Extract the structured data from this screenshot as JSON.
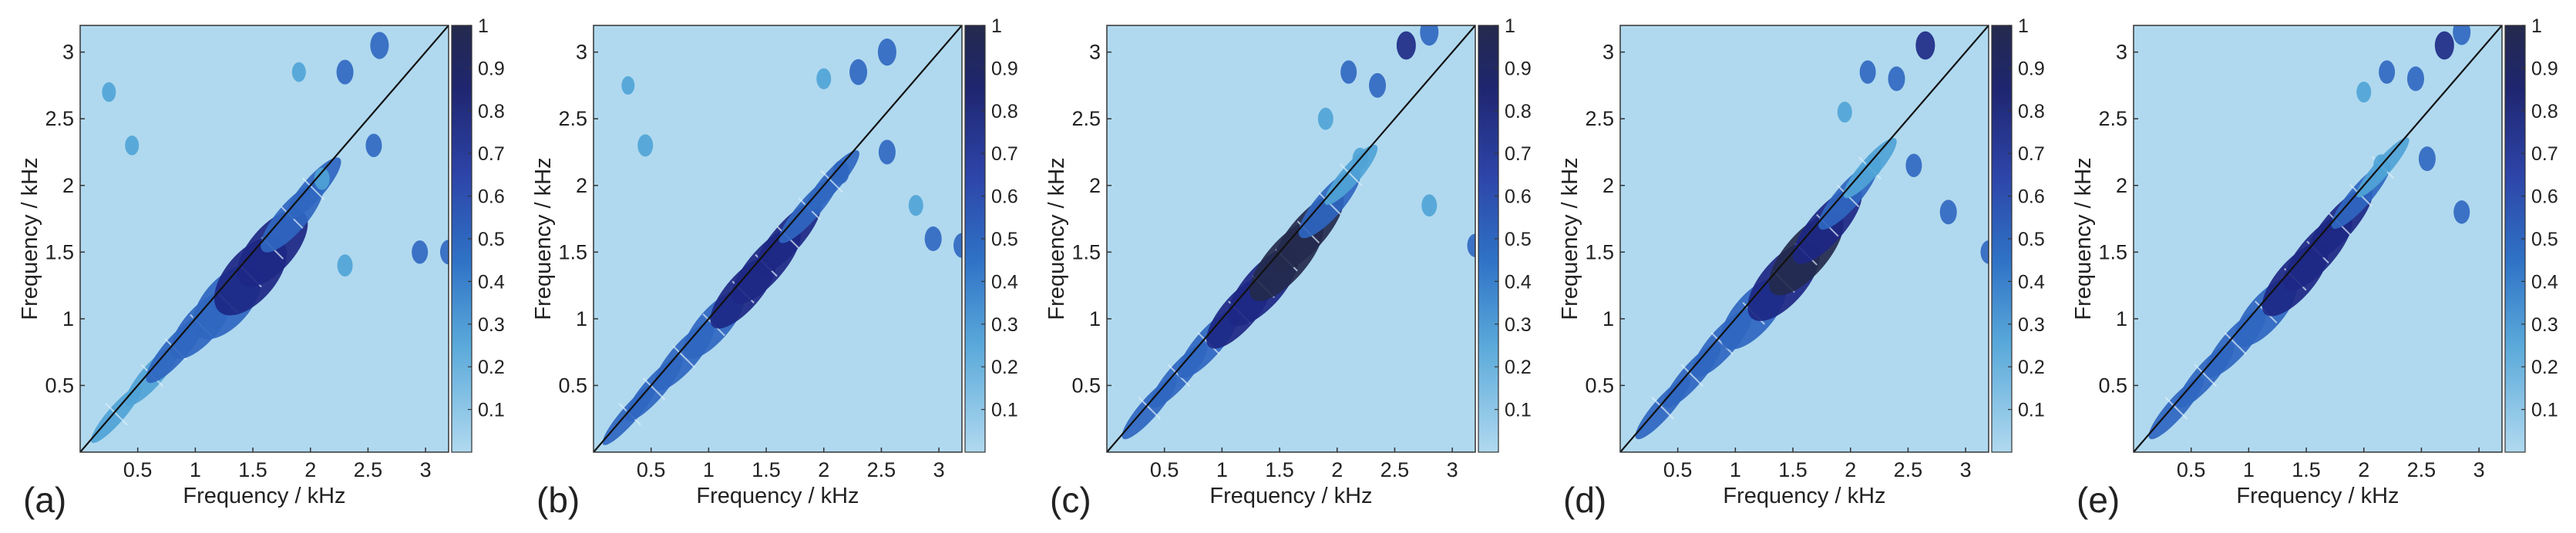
{
  "figure": {
    "colors": {
      "background": "#b0d9ef",
      "low": "#4fa3d6",
      "mid": "#2f66c0",
      "high": "#1d2784",
      "max": "#242a4d",
      "diagonal": "#111111",
      "streak": "#dff0fa"
    }
  },
  "chart_data": [
    {
      "type": "heatmap",
      "panel_label": "(a)",
      "xlabel": "Frequency / kHz",
      "ylabel": "Frequency / kHz",
      "xlim": [
        0,
        3.2
      ],
      "ylim": [
        0,
        3.2
      ],
      "xticks": [
        0.5,
        1,
        1.5,
        2,
        2.5,
        3
      ],
      "yticks": [
        0.5,
        1,
        1.5,
        2,
        2.5,
        3
      ],
      "xtick_labels": [
        "0.5",
        "1",
        "1.5",
        "2",
        "2.5",
        "3"
      ],
      "ytick_labels": [
        "0.5",
        "1",
        "1.5",
        "2",
        "2.5",
        "3"
      ],
      "colorbar": {
        "range": [
          0,
          1
        ],
        "ticks": [
          "0.1",
          "0.2",
          "0.3",
          "0.4",
          "0.5",
          "0.6",
          "0.7",
          "0.8",
          "0.9",
          "1"
        ]
      },
      "diagonal_line": true,
      "bands": [
        {
          "f": 0.3,
          "offset": 0.03,
          "value": 0.35
        },
        {
          "f": 0.6,
          "offset": 0.05,
          "value": 0.4
        },
        {
          "f": 0.8,
          "offset": 0.06,
          "value": 0.55
        },
        {
          "f": 1.0,
          "offset": 0.1,
          "value": 0.5
        },
        {
          "f": 1.2,
          "offset": 0.15,
          "value": 0.6
        },
        {
          "f": 1.4,
          "offset": 0.16,
          "value": 0.7
        },
        {
          "f": 1.6,
          "offset": 0.14,
          "value": 0.7
        },
        {
          "f": 1.8,
          "offset": 0.08,
          "value": 0.6
        },
        {
          "f": 2.0,
          "offset": 0.05,
          "value": 0.45
        }
      ],
      "blobs": [
        {
          "x": 0.25,
          "y": 2.7,
          "value": 0.3
        },
        {
          "x": 0.45,
          "y": 2.3,
          "value": 0.3
        },
        {
          "x": 1.9,
          "y": 2.85,
          "value": 0.3
        },
        {
          "x": 2.3,
          "y": 2.85,
          "value": 0.5
        },
        {
          "x": 2.6,
          "y": 3.05,
          "value": 0.6
        },
        {
          "x": 2.1,
          "y": 2.05,
          "value": 0.4
        },
        {
          "x": 2.3,
          "y": 1.4,
          "value": 0.4
        },
        {
          "x": 2.55,
          "y": 2.3,
          "value": 0.45
        },
        {
          "x": 2.95,
          "y": 1.5,
          "value": 0.45
        },
        {
          "x": 3.2,
          "y": 1.5,
          "value": 0.5
        }
      ]
    },
    {
      "type": "heatmap",
      "panel_label": "(b)",
      "xlabel": "Frequency / kHz",
      "ylabel": "Frequency / kHz",
      "xlim": [
        0,
        3.2
      ],
      "ylim": [
        0,
        3.2
      ],
      "xticks": [
        0.5,
        1,
        1.5,
        2,
        2.5,
        3
      ],
      "yticks": [
        0.5,
        1,
        1.5,
        2,
        2.5,
        3
      ],
      "xtick_labels": [
        "0.5",
        "1",
        "1.5",
        "2",
        "2.5",
        "3"
      ],
      "ytick_labels": [
        "0.5",
        "1",
        "1.5",
        "2",
        "2.5",
        "3"
      ],
      "colorbar": {
        "range": [
          0,
          1
        ],
        "ticks": [
          "0.1",
          "0.2",
          "0.3",
          "0.4",
          "0.5",
          "0.6",
          "0.7",
          "0.8",
          "0.9",
          "1"
        ]
      },
      "diagonal_line": true,
      "bands": [
        {
          "f": 0.3,
          "offset": 0.03,
          "value": 0.45
        },
        {
          "f": 0.5,
          "offset": 0.05,
          "value": 0.5
        },
        {
          "f": 0.75,
          "offset": 0.07,
          "value": 0.55
        },
        {
          "f": 1.0,
          "offset": 0.09,
          "value": 0.55
        },
        {
          "f": 1.25,
          "offset": 0.1,
          "value": 0.65
        },
        {
          "f": 1.45,
          "offset": 0.1,
          "value": 0.75
        },
        {
          "f": 1.65,
          "offset": 0.08,
          "value": 0.7
        },
        {
          "f": 1.85,
          "offset": 0.05,
          "value": 0.6
        },
        {
          "f": 2.05,
          "offset": 0.04,
          "value": 0.45
        }
      ],
      "blobs": [
        {
          "x": 0.45,
          "y": 2.3,
          "value": 0.4
        },
        {
          "x": 0.3,
          "y": 2.75,
          "value": 0.25
        },
        {
          "x": 2.0,
          "y": 2.8,
          "value": 0.35
        },
        {
          "x": 2.3,
          "y": 2.85,
          "value": 0.55
        },
        {
          "x": 2.55,
          "y": 3.0,
          "value": 0.6
        },
        {
          "x": 2.15,
          "y": 2.1,
          "value": 0.45
        },
        {
          "x": 2.55,
          "y": 2.25,
          "value": 0.5
        },
        {
          "x": 2.8,
          "y": 1.85,
          "value": 0.35
        },
        {
          "x": 2.95,
          "y": 1.6,
          "value": 0.5
        },
        {
          "x": 3.2,
          "y": 1.55,
          "value": 0.5
        }
      ]
    },
    {
      "type": "heatmap",
      "panel_label": "(c)",
      "xlabel": "Frequency / kHz",
      "ylabel": "Frequency / kHz",
      "xlim": [
        0,
        3.2
      ],
      "ylim": [
        0,
        3.2
      ],
      "xticks": [
        0.5,
        1,
        1.5,
        2,
        2.5,
        3
      ],
      "yticks": [
        0.5,
        1,
        1.5,
        2,
        2.5,
        3
      ],
      "xtick_labels": [
        "0.5",
        "1",
        "1.5",
        "2",
        "2.5",
        "3"
      ],
      "ytick_labels": [
        "0.5",
        "1",
        "1.5",
        "2",
        "2.5",
        "3"
      ],
      "colorbar": {
        "range": [
          0,
          1
        ],
        "ticks": [
          "0.1",
          "0.2",
          "0.3",
          "0.4",
          "0.5",
          "0.6",
          "0.7",
          "0.8",
          "0.9",
          "1"
        ]
      },
      "diagonal_line": true,
      "bands": [
        {
          "f": 0.35,
          "offset": 0.04,
          "value": 0.45
        },
        {
          "f": 0.6,
          "offset": 0.05,
          "value": 0.5
        },
        {
          "f": 0.85,
          "offset": 0.07,
          "value": 0.6
        },
        {
          "f": 1.1,
          "offset": 0.1,
          "value": 0.65
        },
        {
          "f": 1.3,
          "offset": 0.12,
          "value": 0.75
        },
        {
          "f": 1.5,
          "offset": 0.12,
          "value": 0.85
        },
        {
          "f": 1.7,
          "offset": 0.1,
          "value": 0.8
        },
        {
          "f": 1.9,
          "offset": 0.07,
          "value": 0.6
        },
        {
          "f": 2.1,
          "offset": 0.04,
          "value": 0.4
        }
      ],
      "blobs": [
        {
          "x": 1.9,
          "y": 2.5,
          "value": 0.4
        },
        {
          "x": 2.1,
          "y": 2.85,
          "value": 0.45
        },
        {
          "x": 2.35,
          "y": 2.75,
          "value": 0.5
        },
        {
          "x": 2.6,
          "y": 3.05,
          "value": 0.65
        },
        {
          "x": 2.8,
          "y": 3.15,
          "value": 0.6
        },
        {
          "x": 2.2,
          "y": 2.2,
          "value": 0.4
        },
        {
          "x": 2.8,
          "y": 1.85,
          "value": 0.4
        },
        {
          "x": 3.2,
          "y": 1.55,
          "value": 0.45
        }
      ]
    },
    {
      "type": "heatmap",
      "panel_label": "(d)",
      "xlabel": "Frequency / kHz",
      "ylabel": "Frequency / kHz",
      "xlim": [
        0,
        3.2
      ],
      "ylim": [
        0,
        3.2
      ],
      "xticks": [
        0.5,
        1,
        1.5,
        2,
        2.5,
        3
      ],
      "yticks": [
        0.5,
        1,
        1.5,
        2,
        2.5,
        3
      ],
      "xtick_labels": [
        "0.5",
        "1",
        "1.5",
        "2",
        "2.5",
        "3"
      ],
      "ytick_labels": [
        "0.5",
        "1",
        "1.5",
        "2",
        "2.5",
        "3"
      ],
      "colorbar": {
        "range": [
          0,
          1
        ],
        "ticks": [
          "0.1",
          "0.2",
          "0.3",
          "0.4",
          "0.5",
          "0.6",
          "0.7",
          "0.8",
          "0.9",
          "1"
        ]
      },
      "diagonal_line": true,
      "bands": [
        {
          "f": 0.35,
          "offset": 0.04,
          "value": 0.45
        },
        {
          "f": 0.6,
          "offset": 0.05,
          "value": 0.5
        },
        {
          "f": 0.85,
          "offset": 0.07,
          "value": 0.55
        },
        {
          "f": 1.1,
          "offset": 0.12,
          "value": 0.6
        },
        {
          "f": 1.35,
          "offset": 0.14,
          "value": 0.75
        },
        {
          "f": 1.55,
          "offset": 0.13,
          "value": 0.85
        },
        {
          "f": 1.75,
          "offset": 0.1,
          "value": 0.75
        },
        {
          "f": 1.95,
          "offset": 0.06,
          "value": 0.55
        },
        {
          "f": 2.15,
          "offset": 0.04,
          "value": 0.4
        }
      ],
      "blobs": [
        {
          "x": 1.95,
          "y": 2.55,
          "value": 0.35
        },
        {
          "x": 2.15,
          "y": 2.85,
          "value": 0.45
        },
        {
          "x": 2.4,
          "y": 2.8,
          "value": 0.5
        },
        {
          "x": 2.65,
          "y": 3.05,
          "value": 0.65
        },
        {
          "x": 2.2,
          "y": 2.15,
          "value": 0.4
        },
        {
          "x": 2.55,
          "y": 2.15,
          "value": 0.45
        },
        {
          "x": 2.85,
          "y": 1.8,
          "value": 0.5
        },
        {
          "x": 3.2,
          "y": 1.5,
          "value": 0.45
        }
      ]
    },
    {
      "type": "heatmap",
      "panel_label": "(e)",
      "xlabel": "Frequency / kHz",
      "ylabel": "Frequency / kHz",
      "xlim": [
        0,
        3.2
      ],
      "ylim": [
        0,
        3.2
      ],
      "xticks": [
        0.5,
        1,
        1.5,
        2,
        2.5,
        3
      ],
      "yticks": [
        0.5,
        1,
        1.5,
        2,
        2.5,
        3
      ],
      "xtick_labels": [
        "0.5",
        "1",
        "1.5",
        "2",
        "2.5",
        "3"
      ],
      "ytick_labels": [
        "0.5",
        "1",
        "1.5",
        "2",
        "2.5",
        "3"
      ],
      "colorbar": {
        "range": [
          0,
          1
        ],
        "ticks": [
          "0.1",
          "0.2",
          "0.3",
          "0.4",
          "0.5",
          "0.6",
          "0.7",
          "0.8",
          "0.9",
          "1"
        ]
      },
      "diagonal_line": true,
      "bands": [
        {
          "f": 0.35,
          "offset": 0.04,
          "value": 0.45
        },
        {
          "f": 0.6,
          "offset": 0.05,
          "value": 0.5
        },
        {
          "f": 0.85,
          "offset": 0.07,
          "value": 0.55
        },
        {
          "f": 1.1,
          "offset": 0.1,
          "value": 0.55
        },
        {
          "f": 1.35,
          "offset": 0.11,
          "value": 0.65
        },
        {
          "f": 1.55,
          "offset": 0.1,
          "value": 0.75
        },
        {
          "f": 1.75,
          "offset": 0.08,
          "value": 0.7
        },
        {
          "f": 1.95,
          "offset": 0.05,
          "value": 0.55
        },
        {
          "f": 2.15,
          "offset": 0.03,
          "value": 0.4
        }
      ],
      "blobs": [
        {
          "x": 2.0,
          "y": 2.7,
          "value": 0.35
        },
        {
          "x": 2.2,
          "y": 2.85,
          "value": 0.45
        },
        {
          "x": 2.45,
          "y": 2.8,
          "value": 0.5
        },
        {
          "x": 2.7,
          "y": 3.05,
          "value": 0.65
        },
        {
          "x": 2.85,
          "y": 3.15,
          "value": 0.55
        },
        {
          "x": 2.15,
          "y": 2.15,
          "value": 0.4
        },
        {
          "x": 2.55,
          "y": 2.2,
          "value": 0.5
        },
        {
          "x": 2.85,
          "y": 1.8,
          "value": 0.45
        }
      ]
    }
  ]
}
